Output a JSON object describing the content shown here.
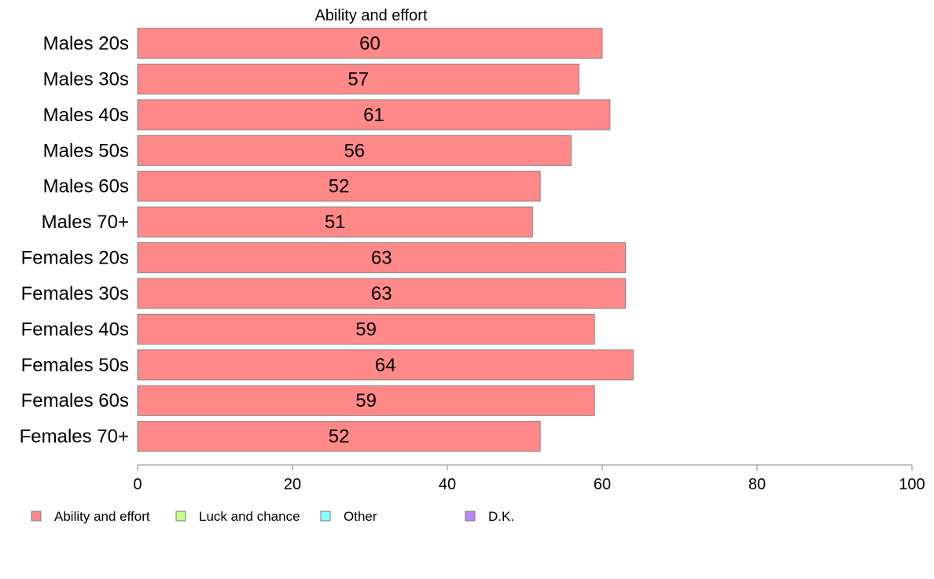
{
  "chart_data": {
    "type": "bar",
    "orientation": "horizontal",
    "title": "Ability and effort",
    "categories": [
      "Males 20s",
      "Males 30s",
      "Males 40s",
      "Males 50s",
      "Males 60s",
      "Males 70+",
      "Females 20s",
      "Females 30s",
      "Females 40s",
      "Females 50s",
      "Females 60s",
      "Females 70+"
    ],
    "series": [
      {
        "name": "Ability and effort",
        "values": [
          60,
          57,
          61,
          56,
          52,
          51,
          63,
          63,
          59,
          64,
          59,
          52
        ]
      }
    ],
    "value_labels": [
      "60",
      "57",
      "61",
      "56",
      "52",
      "51",
      "63",
      "63",
      "59",
      "64",
      "59",
      "52"
    ],
    "xlim": [
      0,
      100
    ],
    "xticks": [
      0,
      20,
      40,
      60,
      80,
      100
    ],
    "xlabel": "",
    "ylabel": "",
    "grid": false,
    "legend": {
      "placement": "bottom",
      "entries": [
        {
          "label": "Ability and effort",
          "color": "#ff8888"
        },
        {
          "label": "Luck and chance",
          "color": "#c8ff88"
        },
        {
          "label": "Other",
          "color": "#88ffff"
        },
        {
          "label": "D.K.",
          "color": "#bb88ff"
        }
      ]
    },
    "bar_color": "#ff8888",
    "bar_edge_color": "#888888"
  }
}
